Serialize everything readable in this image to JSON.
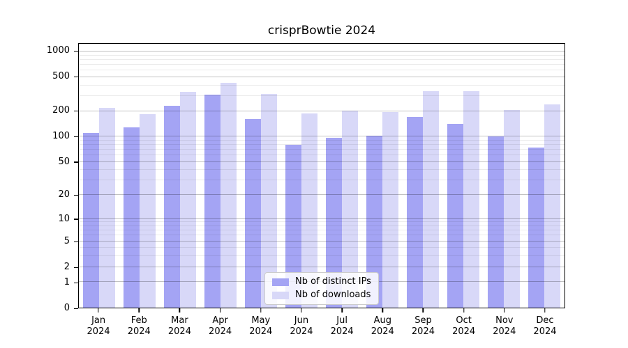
{
  "title": "crisprBowtie 2024",
  "chart_data": {
    "type": "bar",
    "title": "crisprBowtie 2024",
    "categories": [
      "Jan",
      "Feb",
      "Mar",
      "Apr",
      "May",
      "Jun",
      "Jul",
      "Aug",
      "Sep",
      "Oct",
      "Nov",
      "Dec"
    ],
    "category_year": "2024",
    "series": [
      {
        "name": "Nb of distinct IPs",
        "color": "#a4a4f4",
        "values": [
          110,
          128,
          233,
          311,
          162,
          80,
          97,
          102,
          172,
          141,
          100,
          74
        ]
      },
      {
        "name": "Nb of downloads",
        "color": "#d8d8f8",
        "values": [
          218,
          184,
          336,
          431,
          318,
          188,
          201,
          195,
          342,
          345,
          206,
          241
        ]
      }
    ],
    "xlabel": "",
    "ylabel": "",
    "yscale": "log10(1+x)",
    "ylim": [
      0,
      1236
    ],
    "y_major_ticks": [
      0,
      1,
      2,
      5,
      10,
      20,
      50,
      100,
      200,
      500,
      1000
    ],
    "y_minor_gridlines": [
      3,
      4,
      6,
      7,
      8,
      9,
      30,
      40,
      60,
      70,
      80,
      90,
      300,
      400,
      600,
      700,
      800,
      900
    ],
    "grid": "horizontal, drawn above bars",
    "legend_position": "lower center",
    "colors": {
      "background": "#ffffff",
      "spine": "#000000",
      "major_grid": "#c3c3c3",
      "minor_grid": "#eaeaea"
    }
  }
}
